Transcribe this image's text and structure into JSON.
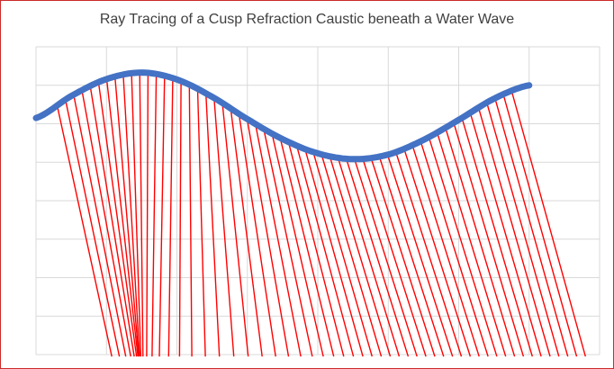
{
  "chart_data": {
    "type": "line",
    "title": "Ray Tracing of a Cusp Refraction Caustic beneath a Water Wave",
    "grid": true,
    "xlim": [
      0,
      8
    ],
    "ylim": [
      0,
      8
    ],
    "series": [
      {
        "kind": "wave-surface",
        "color": "#4472C4",
        "x": [
          0,
          0.5,
          1,
          1.5,
          2,
          2.5,
          3,
          3.5,
          4,
          4.5,
          5,
          5.5,
          6,
          6.5,
          7
        ],
        "y": [
          6.15,
          6.72,
          7.16,
          7.33,
          7.15,
          6.7,
          6.12,
          5.6,
          5.23,
          5.08,
          5.2,
          5.58,
          6.1,
          6.65,
          7.0
        ]
      },
      {
        "kind": "refracted-rays",
        "color": "#FF0000",
        "surface_x_range": [
          0.3,
          6.75
        ],
        "ray_count": 56,
        "exit_y": -0.05,
        "exit_x_range": [
          0.88,
          7.8
        ],
        "focus_x": 1.4,
        "focus_strength": 0.86
      }
    ]
  }
}
